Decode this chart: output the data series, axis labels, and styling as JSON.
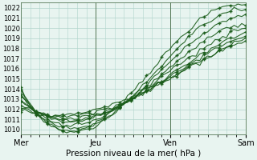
{
  "title": "",
  "xlabel": "Pression niveau de la mer( hPa )",
  "ylabel": "",
  "bg_color": "#e8f4f0",
  "grid_color": "#b0d4cc",
  "line_color": "#1a5c1a",
  "marker_color": "#1a5c1a",
  "ylim": [
    1009.5,
    1022.5
  ],
  "yticks": [
    1010,
    1011,
    1012,
    1013,
    1014,
    1015,
    1016,
    1017,
    1018,
    1019,
    1020,
    1021,
    1022
  ],
  "day_labels": [
    "Mer",
    "Jeu",
    "Ven",
    "Sam"
  ],
  "day_positions": [
    0,
    8,
    16,
    24
  ],
  "xlim": [
    0,
    24
  ]
}
